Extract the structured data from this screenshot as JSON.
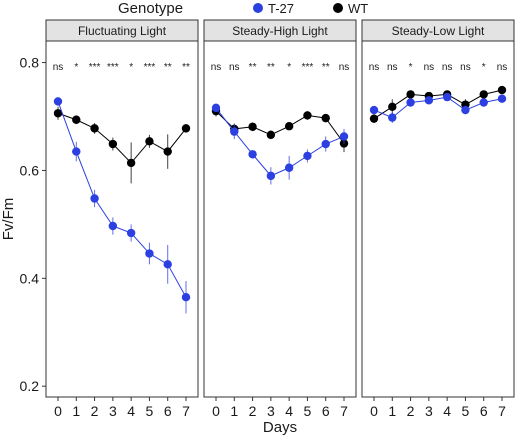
{
  "chart_data": {
    "type": "line",
    "legend": {
      "title": "Genotype",
      "position": "top",
      "entries": [
        {
          "label": "T-27",
          "color": "#2c3fe0"
        },
        {
          "label": "WT",
          "color": "#000000"
        }
      ]
    },
    "xlabel": "Days",
    "ylabel": "Fv/Fm",
    "x": [
      0,
      1,
      2,
      3,
      4,
      5,
      6,
      7
    ],
    "xticks": [
      "0",
      "1",
      "2",
      "3",
      "4",
      "5",
      "6",
      "7"
    ],
    "ylim": [
      0.18,
      0.84
    ],
    "yticks": [
      {
        "value": 0.2,
        "label": "0.2"
      },
      {
        "value": 0.4,
        "label": "0.4"
      },
      {
        "value": 0.6,
        "label": "0.6"
      },
      {
        "value": 0.8,
        "label": "0.8"
      }
    ],
    "grid": false,
    "panels": [
      {
        "title": "Fluctuating Light",
        "significance": [
          "ns",
          "*",
          "***",
          "***",
          "*",
          "***",
          "**",
          "**"
        ],
        "series": [
          {
            "name": "T-27",
            "color": "#2c3fe0",
            "values": [
              0.728,
              0.635,
              0.548,
              0.497,
              0.484,
              0.446,
              0.426,
              0.365
            ],
            "errors": [
              0.008,
              0.018,
              0.016,
              0.016,
              0.016,
              0.02,
              0.036,
              0.03
            ]
          },
          {
            "name": "WT",
            "color": "#000000",
            "values": [
              0.706,
              0.694,
              0.678,
              0.649,
              0.614,
              0.654,
              0.635,
              0.678
            ],
            "errors": [
              0.012,
              0.008,
              0.01,
              0.012,
              0.038,
              0.012,
              0.032,
              0.006
            ]
          }
        ]
      },
      {
        "title": "Steady-High Light",
        "significance": [
          "ns",
          "ns",
          "**",
          "**",
          "*",
          "***",
          "**",
          "ns"
        ],
        "series": [
          {
            "name": "T-27",
            "color": "#2c3fe0",
            "values": [
              0.716,
              0.672,
              0.63,
              0.59,
              0.605,
              0.627,
              0.649,
              0.663
            ],
            "errors": [
              0.008,
              0.014,
              0.006,
              0.016,
              0.022,
              0.012,
              0.014,
              0.014
            ]
          },
          {
            "name": "WT",
            "color": "#000000",
            "values": [
              0.71,
              0.677,
              0.681,
              0.666,
              0.682,
              0.702,
              0.697,
              0.65
            ],
            "errors": [
              0.01,
              0.01,
              0.008,
              0.008,
              0.004,
              0.008,
              0.004,
              0.016
            ]
          }
        ]
      },
      {
        "title": "Steady-Low Light",
        "significance": [
          "ns",
          "ns",
          "*",
          "ns",
          "ns",
          "ns",
          "*",
          "ns"
        ],
        "series": [
          {
            "name": "T-27",
            "color": "#2c3fe0",
            "values": [
              0.712,
              0.698,
              0.726,
              0.73,
              0.736,
              0.712,
              0.726,
              0.733
            ],
            "errors": [
              0.006,
              0.01,
              0.006,
              0.006,
              0.004,
              0.008,
              0.006,
              0.006
            ]
          },
          {
            "name": "WT",
            "color": "#000000",
            "values": [
              0.696,
              0.718,
              0.741,
              0.738,
              0.741,
              0.722,
              0.741,
              0.749
            ],
            "errors": [
              0.008,
              0.014,
              0.004,
              0.006,
              0.004,
              0.01,
              0.006,
              0.006
            ]
          }
        ]
      }
    ]
  }
}
